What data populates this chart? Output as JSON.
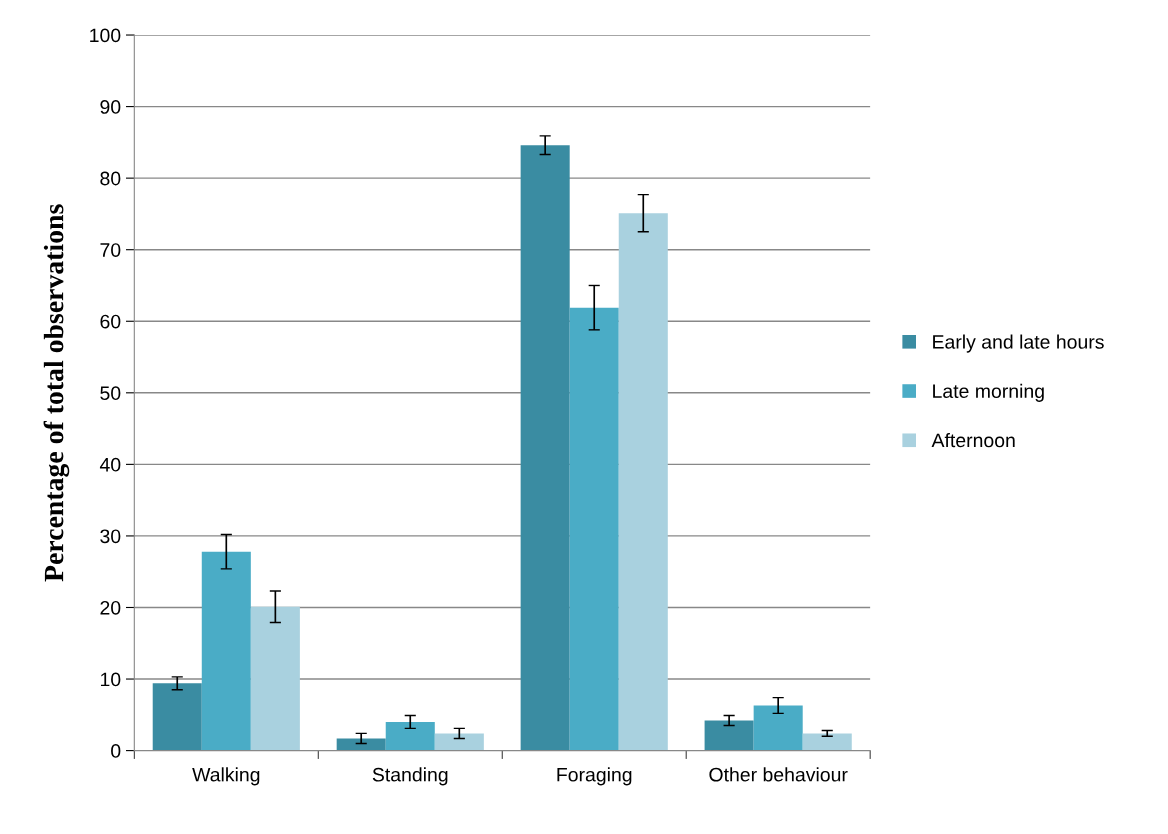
{
  "chart_data": {
    "type": "bar",
    "ylabel": "Percentage of total observations",
    "categories": [
      "Walking",
      "Standing",
      "Foraging",
      "Other behaviour"
    ],
    "series": [
      {
        "name": "Early and late hours",
        "color": "#3a8ca2",
        "values": [
          9.4,
          1.7,
          84.6,
          4.2
        ],
        "errors": [
          0.9,
          0.7,
          1.3,
          0.7
        ]
      },
      {
        "name": "Late morning",
        "color": "#4aacc6",
        "values": [
          27.8,
          4.0,
          61.9,
          6.3
        ],
        "errors": [
          2.4,
          0.9,
          3.1,
          1.1
        ]
      },
      {
        "name": "Afternoon",
        "color": "#a9d1df",
        "values": [
          20.1,
          2.4,
          75.1,
          2.4
        ],
        "errors": [
          2.2,
          0.7,
          2.6,
          0.4
        ]
      }
    ],
    "ylim": [
      0,
      100
    ],
    "yticks": [
      0,
      10,
      20,
      30,
      40,
      50,
      60,
      70,
      80,
      90,
      100
    ],
    "grid": "y",
    "legend": "right"
  }
}
